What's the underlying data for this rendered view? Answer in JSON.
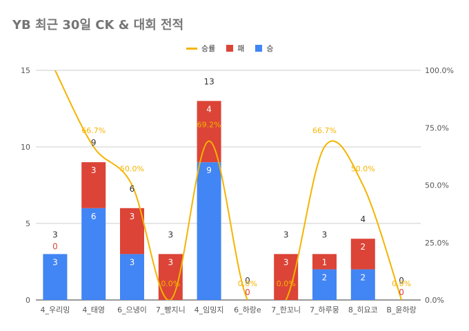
{
  "title": "YB 최근 30일 CK & 대회 전적",
  "legend": [
    {
      "label": "승률",
      "color": "#f4b400",
      "kind": "line"
    },
    {
      "label": "패",
      "color": "#db4437",
      "kind": "box"
    },
    {
      "label": "승",
      "color": "#4285f4",
      "kind": "box"
    }
  ],
  "chart_data": {
    "type": "bar",
    "stacked": true,
    "title": "YB 최근 30일 CK & 대회 전적",
    "categories": [
      "4_우리밍",
      "4_태영",
      "6_으냉이",
      "7_빵지니",
      "4_임밍지",
      "6_하랑e",
      "7_한꼬니",
      "7_하루뭉",
      "8_히요코",
      "B_윤하랑"
    ],
    "series": [
      {
        "name": "승",
        "axis": "left",
        "color": "#4285f4",
        "values": [
          3,
          6,
          3,
          0,
          9,
          0,
          0,
          2,
          2,
          0
        ]
      },
      {
        "name": "패",
        "axis": "left",
        "color": "#db4437",
        "values": [
          0,
          3,
          3,
          3,
          4,
          0,
          3,
          1,
          2,
          0
        ]
      },
      {
        "name": "승률",
        "axis": "right",
        "type": "line",
        "color": "#f4b400",
        "values": [
          100.0,
          66.7,
          50.0,
          0.0,
          69.2,
          0.0,
          0.0,
          66.7,
          50.0,
          0.0
        ]
      }
    ],
    "totals": [
      3,
      9,
      6,
      3,
      13,
      0,
      3,
      3,
      4,
      0
    ],
    "y_left": {
      "min": 0,
      "max": 15,
      "ticks": [
        0,
        5,
        10,
        15
      ]
    },
    "y_right": {
      "min": 0,
      "max": 100,
      "ticks": [
        "0.0%",
        "25.0%",
        "50.0%",
        "75.0%",
        "100.0%"
      ]
    },
    "rate_labels": [
      "",
      "66.7%",
      "50.0%",
      "0.0%",
      "69.2%",
      "0.0%",
      "0.0%",
      "66.7%",
      "50.0%",
      "0.0%"
    ],
    "legend_position": "top"
  }
}
